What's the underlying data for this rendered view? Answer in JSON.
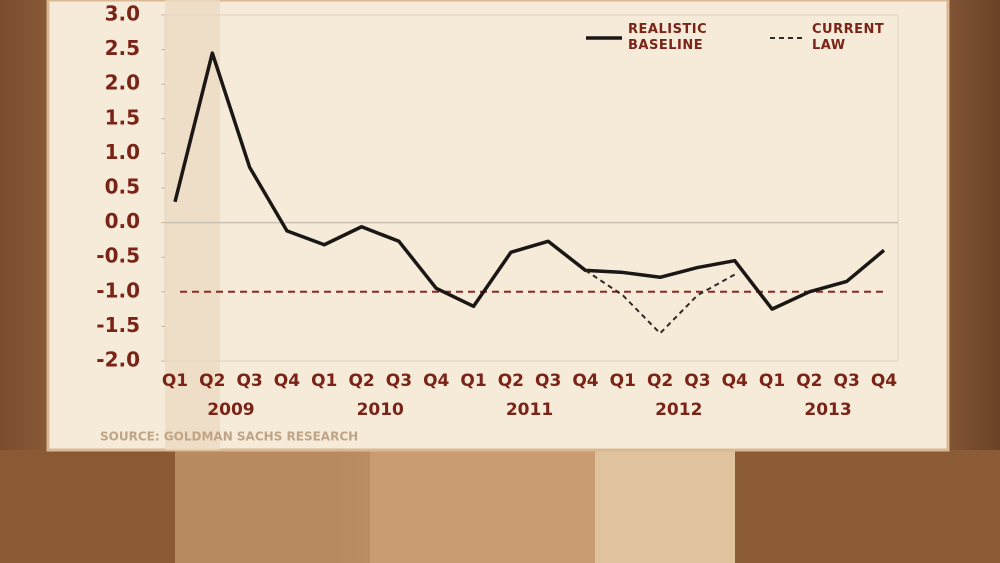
{
  "chart_data": {
    "type": "line",
    "categories": [
      "Q1",
      "Q2",
      "Q3",
      "Q4",
      "Q1",
      "Q2",
      "Q3",
      "Q4",
      "Q1",
      "Q2",
      "Q3",
      "Q4",
      "Q1",
      "Q2",
      "Q3",
      "Q4",
      "Q1",
      "Q2",
      "Q3",
      "Q4"
    ],
    "year_labels": [
      "2009",
      "2010",
      "2011",
      "2012",
      "2013"
    ],
    "series": [
      {
        "name": "REALISTIC BASELINE",
        "color": "#1a1714",
        "style": "solid",
        "values": [
          0.3,
          2.45,
          0.8,
          -0.12,
          -0.32,
          -0.06,
          -0.27,
          -0.95,
          -1.21,
          -0.43,
          -0.27,
          -0.69,
          -0.72,
          -0.79,
          -0.65,
          -0.55,
          -1.25,
          -1.0,
          -0.85,
          -0.4
        ]
      },
      {
        "name": "CURRENT LAW",
        "color": "#2e2a26",
        "style": "dashed",
        "values": [
          null,
          null,
          null,
          null,
          null,
          null,
          null,
          null,
          null,
          null,
          null,
          -0.69,
          -1.05,
          -1.6,
          -1.05,
          -0.75,
          null,
          null,
          null,
          null
        ]
      }
    ],
    "reference_line": {
      "value": -1.0,
      "color": "#8a2a26"
    },
    "ylim": [
      -2,
      3
    ],
    "yticks": [
      {
        "value": 3,
        "label": "3.0"
      },
      2.5,
      {
        "value": 2,
        "label": "2.0"
      },
      1.5,
      {
        "value": 1,
        "label": "1.0"
      },
      0.5,
      {
        "value": 0,
        "label": "0.0"
      },
      -0.5,
      {
        "value": -1,
        "label": "-1.0"
      },
      -1.5,
      {
        "value": -2,
        "label": "-2.0"
      }
    ],
    "zero_line": true,
    "source": "SOURCE: GOLDMAN SACHS RESEARCH"
  }
}
